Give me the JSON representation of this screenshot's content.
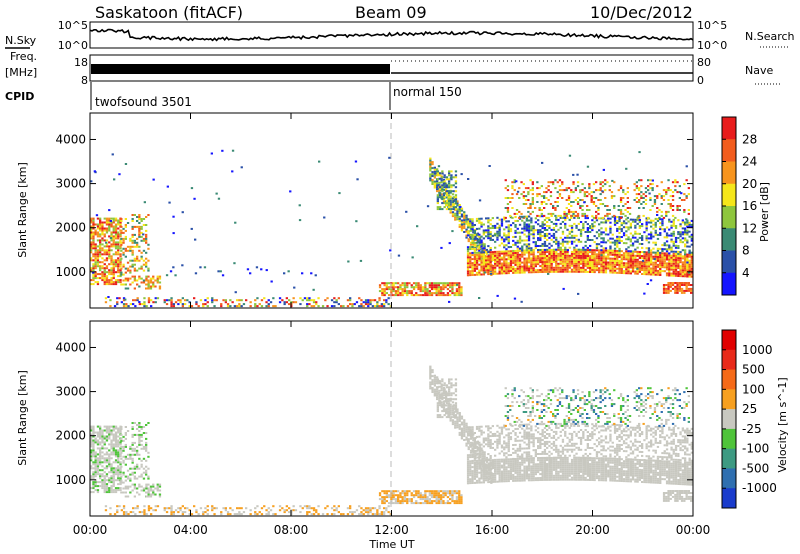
{
  "header": {
    "station": "Saskatoon (fitACF)",
    "beam": "Beam 09",
    "date": "10/Dec/2012"
  },
  "top_panel": {
    "left_label": "N.Sky",
    "right_label": "N.Search",
    "left_ticks": [
      "10^5",
      "10^0"
    ],
    "right_ticks": [
      "10^5",
      "10^0"
    ]
  },
  "freq_panel": {
    "left_label_1": "Freq.",
    "left_label_2": "[MHz]",
    "left_ticks": [
      "18",
      "8"
    ],
    "right_label": "Nave",
    "right_ticks": [
      "80",
      "0"
    ],
    "cpid_label": "CPID",
    "cpid_1": "twofsound 3501",
    "cpid_2": "normal 150"
  },
  "chart_data": [
    {
      "type": "heatmap",
      "xlabel": "",
      "ylabel": "Slant Range [km]",
      "x_ticks": [
        "00:00",
        "04:00",
        "08:00",
        "12:00",
        "16:00",
        "20:00",
        "00:00"
      ],
      "xlim_hours": [
        0,
        24
      ],
      "ylim_km": [
        180,
        4600
      ],
      "y_ticks": [
        1000,
        2000,
        3000,
        4000
      ],
      "colorbar_label": "Power [dB]",
      "colorbar_ticks": [
        4,
        8,
        12,
        16,
        20,
        24,
        28
      ],
      "colorbar_colors": [
        "#1515ff",
        "#2a50a8",
        "#3a8a74",
        "#8ec63d",
        "#f5e61a",
        "#f7941d",
        "#f25c1d",
        "#e81c1c"
      ]
    },
    {
      "type": "heatmap",
      "xlabel": "Time UT",
      "ylabel": "Slant Range [km]",
      "x_ticks": [
        "00:00",
        "04:00",
        "08:00",
        "12:00",
        "16:00",
        "20:00",
        "00:00"
      ],
      "xlim_hours": [
        0,
        24
      ],
      "ylim_km": [
        180,
        4600
      ],
      "y_ticks": [
        1000,
        2000,
        3000,
        4000
      ],
      "colorbar_label": "Velocity [m s^-1]",
      "colorbar_ticks": [
        1000,
        500,
        100,
        25,
        -25,
        -100,
        -500,
        -1000
      ],
      "colorbar_colors": [
        "#1a3ccc",
        "#2f6fb0",
        "#3d9a82",
        "#4fc43a",
        "#c8c8c0",
        "#f7a020",
        "#f56a18",
        "#e82a1a",
        "#e10000"
      ]
    }
  ]
}
